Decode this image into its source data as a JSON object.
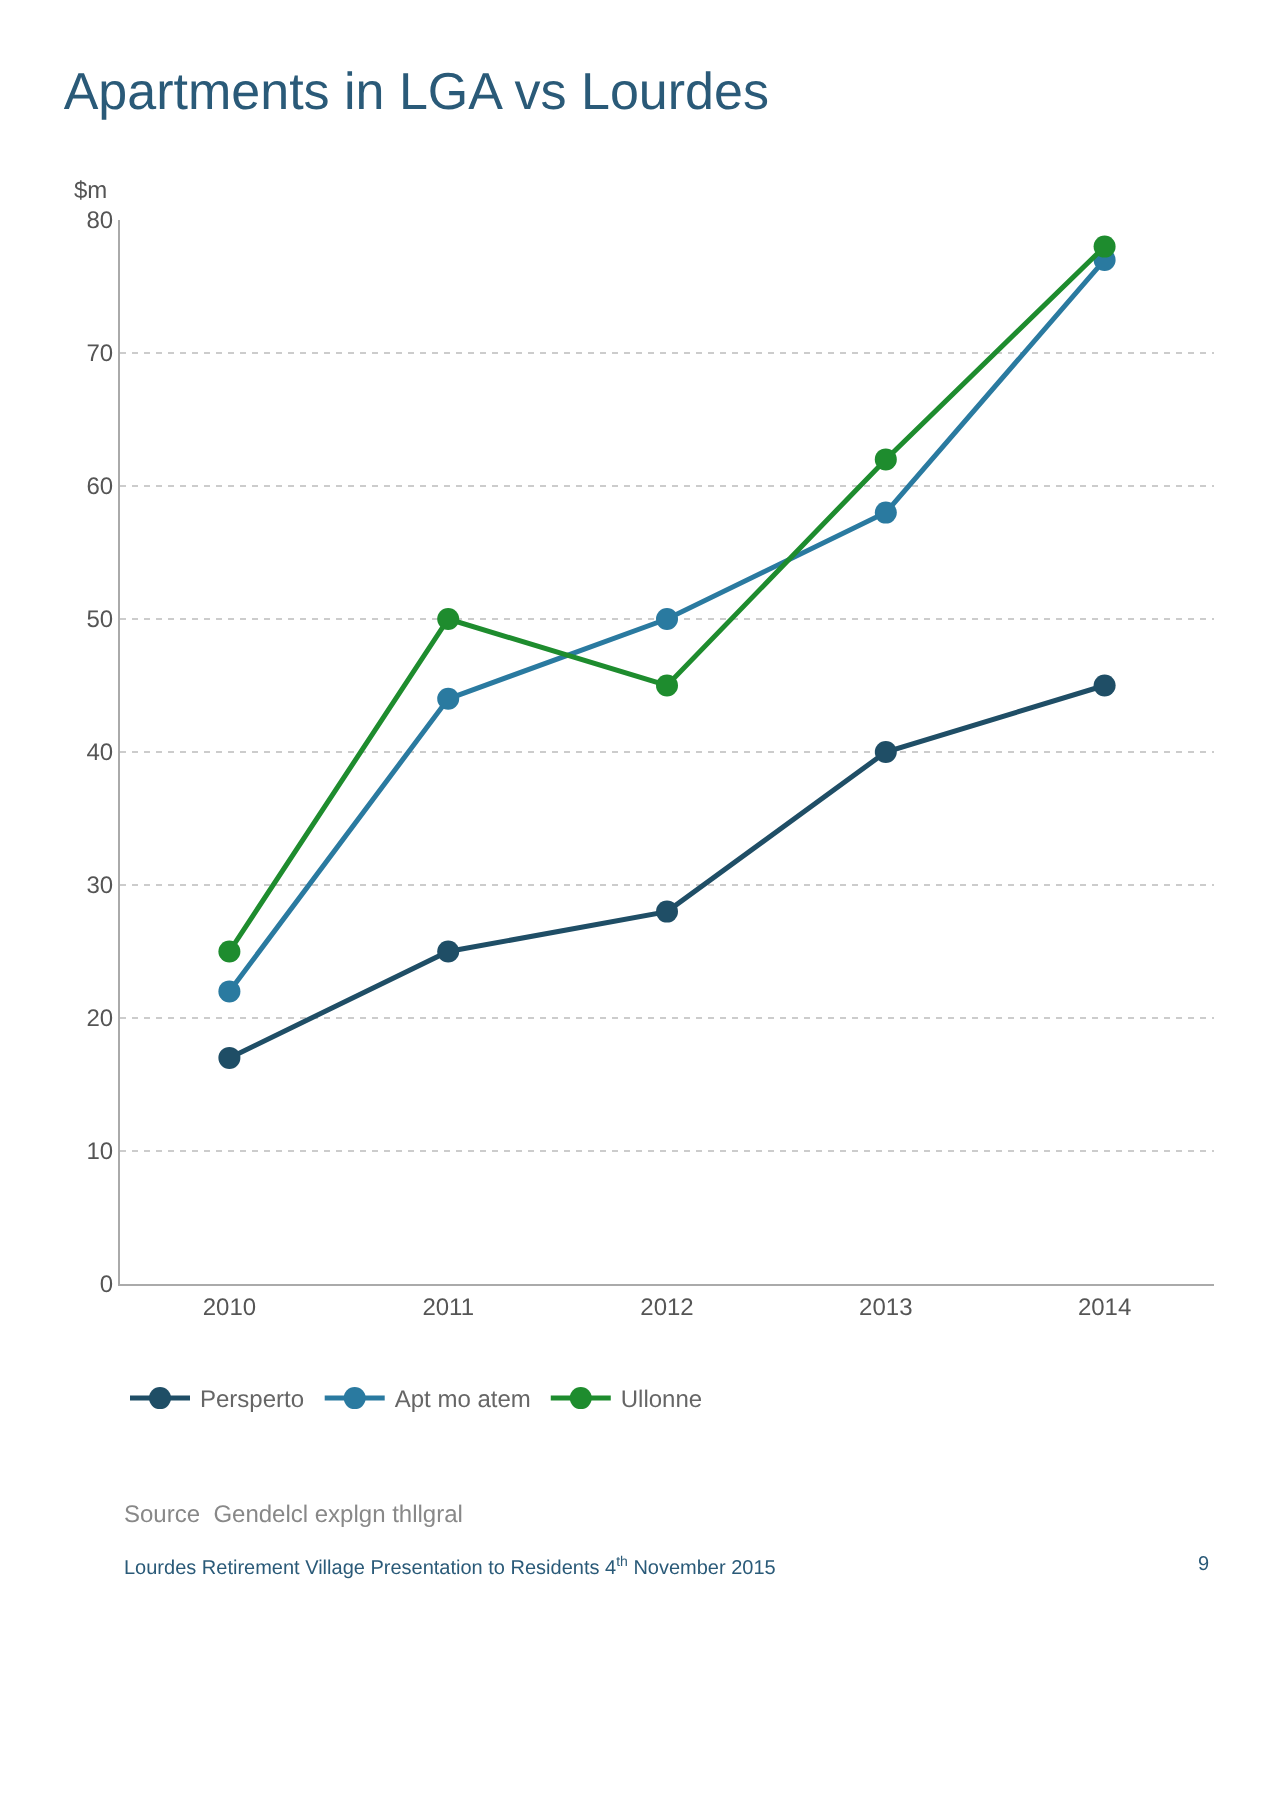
{
  "chart_data": {
    "type": "line",
    "title": "Apartments in LGA vs Lourdes",
    "ylabel": "$m",
    "categories": [
      "2010",
      "2011",
      "2012",
      "2013",
      "2014"
    ],
    "series": [
      {
        "name": "Persperto",
        "color": "#1f4e66",
        "values": [
          17,
          25,
          28,
          40,
          45
        ]
      },
      {
        "name": "Apt mo atem",
        "color": "#2a7aa0",
        "values": [
          22,
          44,
          50,
          58,
          77
        ]
      },
      {
        "name": "Ullonne",
        "color": "#1e8c2e",
        "values": [
          25,
          50,
          45,
          62,
          78
        ]
      }
    ],
    "ylim": [
      0,
      80
    ],
    "yticks": [
      0,
      10,
      20,
      30,
      40,
      50,
      60,
      70,
      80
    ],
    "grid": "y",
    "legend": "bottom",
    "marker": "circle",
    "line_style": "solid",
    "annotations": [
      "Source  Gendelcl explgn thllgral",
      "Lourdes Retirement Village Presentation to Residents 4$^{th}$ November 2015",
      "9"
    ]
  }
}
